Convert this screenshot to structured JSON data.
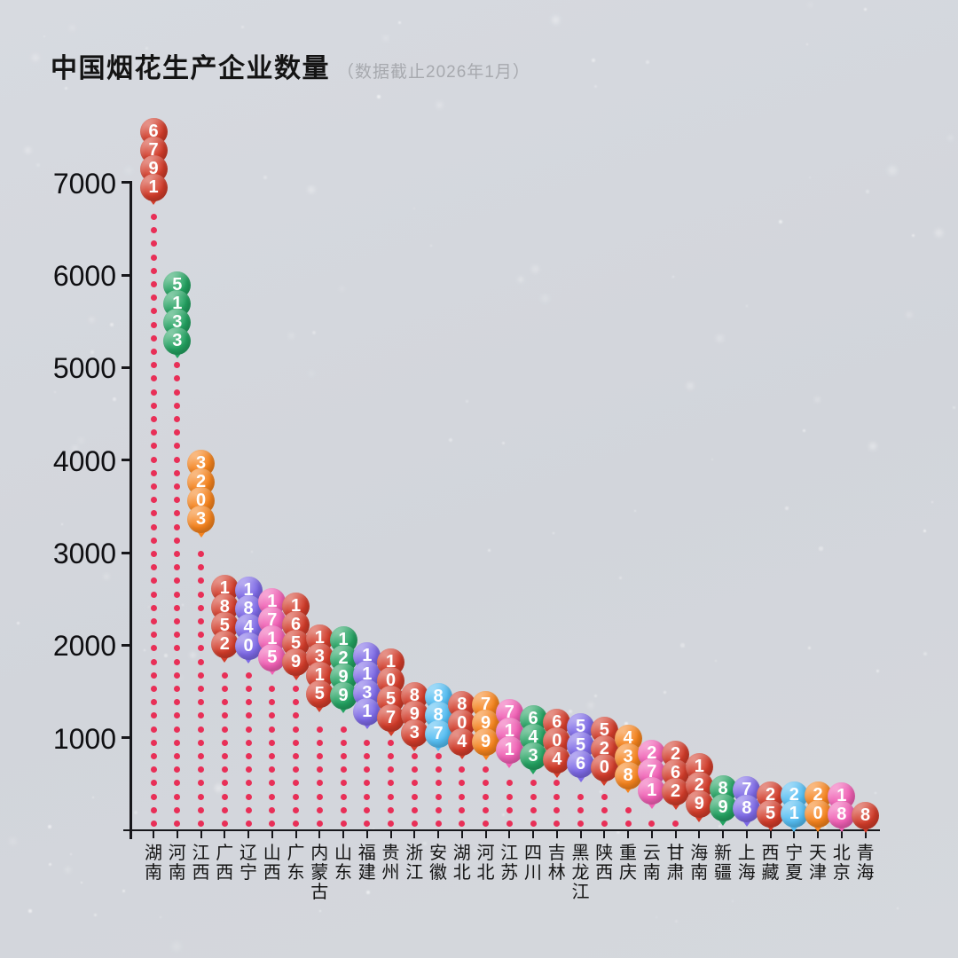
{
  "title": {
    "text": "中国烟花生产企业数量",
    "subtitle": "（数据截止2026年1月）"
  },
  "palette": {
    "red": "#d23c2a",
    "green": "#23a261",
    "orange": "#f5831d",
    "purple": "#7d69e6",
    "pink": "#f05fb4",
    "blue": "#54bdf2"
  },
  "chart_data": {
    "type": "bar",
    "style": "balloon-lollipop",
    "title": "中国烟花生产企业数量",
    "subtitle": "（数据截止2026年1月）",
    "categories": [
      "湖南",
      "河南",
      "江西",
      "广西",
      "辽宁",
      "山西",
      "广东",
      "内蒙古",
      "山东",
      "福建",
      "贵州",
      "浙江",
      "安徽",
      "湖北",
      "河北",
      "江苏",
      "四川",
      "吉林",
      "黑龙江",
      "陕西",
      "重庆",
      "云南",
      "甘肃",
      "海南",
      "新疆",
      "上海",
      "西藏",
      "宁夏",
      "天津",
      "北京",
      "青海"
    ],
    "values": [
      6791,
      5133,
      3203,
      1852,
      1840,
      1715,
      1659,
      1315,
      1299,
      1131,
      1057,
      893,
      887,
      804,
      799,
      711,
      643,
      604,
      556,
      520,
      438,
      271,
      262,
      129,
      89,
      78,
      25,
      21,
      20,
      18,
      8
    ],
    "colors": [
      "red",
      "green",
      "orange",
      "red",
      "purple",
      "pink",
      "red",
      "red",
      "green",
      "purple",
      "red",
      "red",
      "blue",
      "red",
      "orange",
      "pink",
      "green",
      "red",
      "purple",
      "red",
      "orange",
      "pink",
      "red",
      "red",
      "green",
      "purple",
      "red",
      "blue",
      "orange",
      "pink",
      "red"
    ],
    "yticks": [
      1000,
      2000,
      3000,
      4000,
      5000,
      6000,
      7000
    ],
    "ylim": [
      0,
      7400
    ],
    "grid": false,
    "legend": false,
    "stem_color": "#e82f57",
    "axis_color": "#17171b",
    "background": "#d4d7dd"
  }
}
